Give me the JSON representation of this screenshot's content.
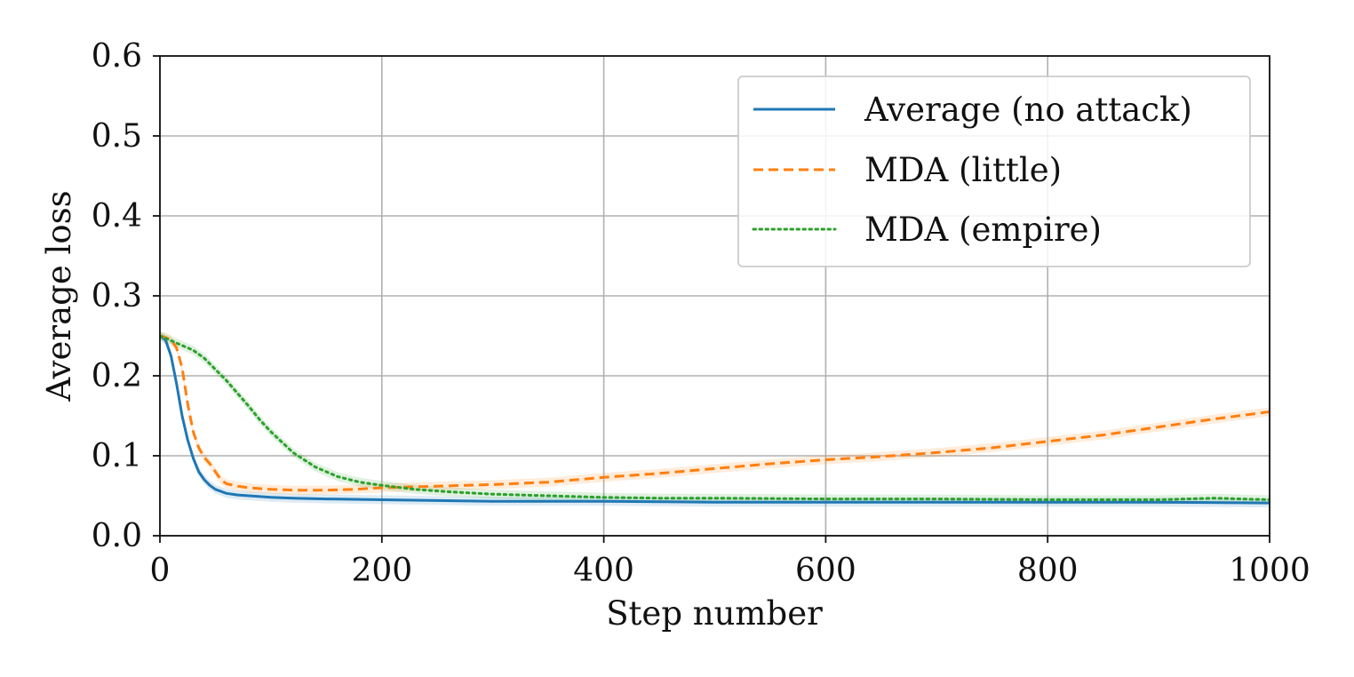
{
  "chart_data": {
    "type": "line",
    "title": "",
    "xlabel": "Step number",
    "ylabel": "Average loss",
    "xlim": [
      0,
      1000
    ],
    "ylim": [
      0.0,
      0.6
    ],
    "grid": true,
    "legend_position": "top-right",
    "x_ticks": [
      0,
      200,
      400,
      600,
      800,
      1000
    ],
    "x_tick_labels": [
      "0",
      "200",
      "400",
      "600",
      "800",
      "1000"
    ],
    "y_ticks": [
      0.0,
      0.1,
      0.2,
      0.3,
      0.4,
      0.5,
      0.6
    ],
    "y_tick_labels": [
      "0.0",
      "0.1",
      "0.2",
      "0.3",
      "0.4",
      "0.5",
      "0.6"
    ],
    "series": [
      {
        "name": "Average (no attack)",
        "style": "solid",
        "color": "#1f77b4",
        "x": [
          0,
          5,
          10,
          15,
          20,
          25,
          30,
          35,
          40,
          45,
          50,
          60,
          70,
          80,
          100,
          120,
          150,
          200,
          250,
          300,
          400,
          500,
          600,
          700,
          800,
          900,
          1000
        ],
        "y": [
          0.25,
          0.245,
          0.225,
          0.19,
          0.15,
          0.12,
          0.097,
          0.08,
          0.07,
          0.063,
          0.058,
          0.053,
          0.051,
          0.05,
          0.048,
          0.047,
          0.046,
          0.045,
          0.044,
          0.043,
          0.043,
          0.042,
          0.042,
          0.042,
          0.042,
          0.042,
          0.041
        ]
      },
      {
        "name": "MDA (little)",
        "style": "dashed",
        "color": "#ff7f0e",
        "x": [
          0,
          5,
          10,
          15,
          20,
          25,
          30,
          35,
          40,
          45,
          50,
          55,
          60,
          70,
          80,
          100,
          120,
          150,
          175,
          200,
          250,
          300,
          350,
          400,
          450,
          500,
          550,
          600,
          650,
          700,
          750,
          800,
          850,
          900,
          950,
          1000
        ],
        "y": [
          0.25,
          0.248,
          0.245,
          0.235,
          0.21,
          0.165,
          0.13,
          0.11,
          0.098,
          0.09,
          0.08,
          0.07,
          0.065,
          0.062,
          0.06,
          0.058,
          0.057,
          0.057,
          0.058,
          0.06,
          0.062,
          0.064,
          0.067,
          0.073,
          0.078,
          0.084,
          0.09,
          0.095,
          0.099,
          0.104,
          0.11,
          0.118,
          0.126,
          0.136,
          0.146,
          0.155
        ]
      },
      {
        "name": "MDA (empire)",
        "style": "dotted",
        "color": "#2ca02c",
        "x": [
          0,
          10,
          20,
          30,
          40,
          50,
          60,
          70,
          80,
          90,
          100,
          120,
          140,
          160,
          180,
          200,
          230,
          260,
          300,
          350,
          400,
          450,
          500,
          600,
          700,
          800,
          900,
          950,
          1000
        ],
        "y": [
          0.25,
          0.244,
          0.238,
          0.232,
          0.222,
          0.208,
          0.194,
          0.178,
          0.162,
          0.145,
          0.13,
          0.104,
          0.086,
          0.074,
          0.067,
          0.063,
          0.058,
          0.055,
          0.052,
          0.05,
          0.048,
          0.047,
          0.047,
          0.046,
          0.046,
          0.045,
          0.045,
          0.047,
          0.045
        ]
      }
    ]
  }
}
